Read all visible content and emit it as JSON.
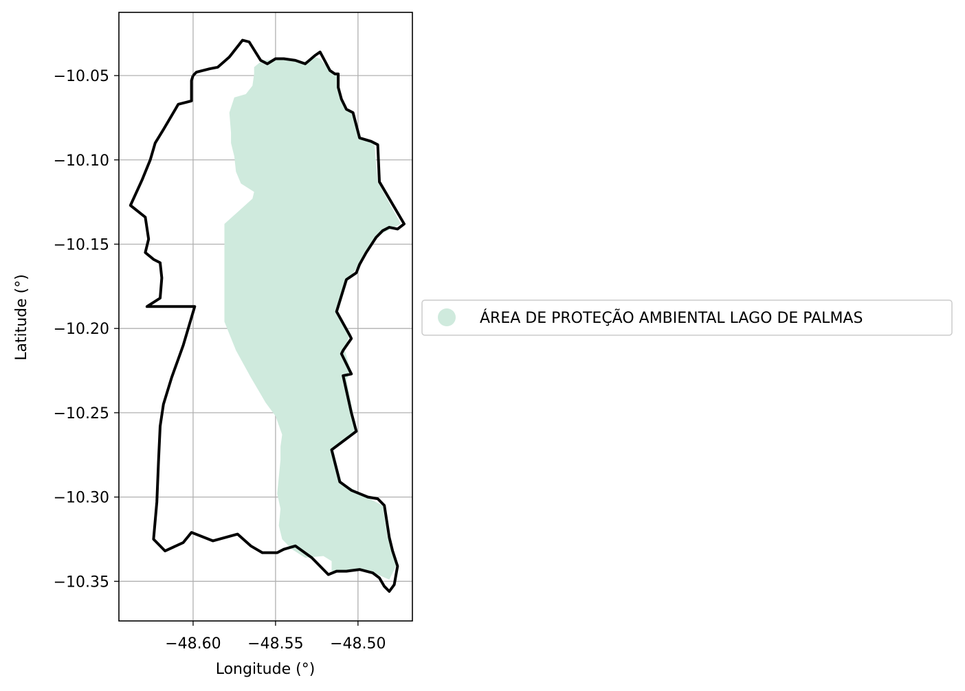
{
  "map": {
    "xlabel": "Longitude (°)",
    "ylabel": "Latitude (°)",
    "grid": true,
    "xlim": [
      -48.645,
      -48.467
    ],
    "ylim": [
      -10.3735,
      -10.0125
    ],
    "x_ticks": [
      {
        "value": -48.6,
        "label": "−48.60"
      },
      {
        "value": -48.55,
        "label": "−48.55"
      },
      {
        "value": -48.5,
        "label": "−48.50"
      }
    ],
    "y_ticks": [
      {
        "value": -10.05,
        "label": "−10.05"
      },
      {
        "value": -10.1,
        "label": "−10.10"
      },
      {
        "value": -10.15,
        "label": "−10.15"
      },
      {
        "value": -10.2,
        "label": "−10.20"
      },
      {
        "value": -10.25,
        "label": "−10.25"
      },
      {
        "value": -10.3,
        "label": "−10.30"
      },
      {
        "value": -10.35,
        "label": "−10.35"
      }
    ],
    "legend": {
      "placement": "center-left outside",
      "entries": [
        {
          "label": "ÁREA DE PROTEÇÃO AMBIENTAL LAGO DE PALMAS",
          "color": "#cfeadd"
        }
      ]
    },
    "colors": {
      "protected_area_fill": "#cfeadd",
      "boundary_line": "#000000",
      "grid": "#b0b0b0"
    },
    "boundary_polygon": [
      [
        -48.6,
        -10.05
      ],
      [
        -48.598,
        -10.048
      ],
      [
        -48.59,
        -10.046
      ],
      [
        -48.585,
        -10.045
      ],
      [
        -48.578,
        -10.039
      ],
      [
        -48.57,
        -10.029
      ],
      [
        -48.566,
        -10.03
      ],
      [
        -48.559,
        -10.041
      ],
      [
        -48.555,
        -10.043
      ],
      [
        -48.55,
        -10.04
      ],
      [
        -48.545,
        -10.04
      ],
      [
        -48.538,
        -10.041
      ],
      [
        -48.532,
        -10.043
      ],
      [
        -48.526,
        -10.038
      ],
      [
        -48.523,
        -10.036
      ],
      [
        -48.517,
        -10.047
      ],
      [
        -48.514,
        -10.049
      ],
      [
        -48.512,
        -10.049
      ],
      [
        -48.512,
        -10.057
      ],
      [
        -48.51,
        -10.064
      ],
      [
        -48.507,
        -10.07
      ],
      [
        -48.503,
        -10.072
      ],
      [
        -48.499,
        -10.087
      ],
      [
        -48.492,
        -10.089
      ],
      [
        -48.488,
        -10.091
      ],
      [
        -48.487,
        -10.113
      ],
      [
        -48.472,
        -10.138
      ],
      [
        -48.476,
        -10.141
      ],
      [
        -48.481,
        -10.14
      ],
      [
        -48.485,
        -10.142
      ],
      [
        -48.489,
        -10.146
      ],
      [
        -48.495,
        -10.155
      ],
      [
        -48.499,
        -10.162
      ],
      [
        -48.501,
        -10.167
      ],
      [
        -48.507,
        -10.171
      ],
      [
        -48.513,
        -10.19
      ],
      [
        -48.505,
        -10.204
      ],
      [
        -48.504,
        -10.206
      ],
      [
        -48.509,
        -10.213
      ],
      [
        -48.51,
        -10.215
      ],
      [
        -48.504,
        -10.227
      ],
      [
        -48.509,
        -10.228
      ],
      [
        -48.504,
        -10.25
      ],
      [
        -48.501,
        -10.261
      ],
      [
        -48.516,
        -10.272
      ],
      [
        -48.511,
        -10.291
      ],
      [
        -48.504,
        -10.296
      ],
      [
        -48.494,
        -10.3
      ],
      [
        -48.488,
        -10.301
      ],
      [
        -48.484,
        -10.305
      ],
      [
        -48.481,
        -10.324
      ],
      [
        -48.479,
        -10.332
      ],
      [
        -48.476,
        -10.341
      ],
      [
        -48.478,
        -10.352
      ],
      [
        -48.481,
        -10.356
      ],
      [
        -48.484,
        -10.353
      ],
      [
        -48.487,
        -10.348
      ],
      [
        -48.491,
        -10.345
      ],
      [
        -48.499,
        -10.343
      ],
      [
        -48.507,
        -10.344
      ],
      [
        -48.513,
        -10.344
      ],
      [
        -48.518,
        -10.346
      ],
      [
        -48.528,
        -10.336
      ],
      [
        -48.538,
        -10.329
      ],
      [
        -48.545,
        -10.331
      ],
      [
        -48.549,
        -10.333
      ],
      [
        -48.558,
        -10.333
      ],
      [
        -48.565,
        -10.329
      ],
      [
        -48.573,
        -10.322
      ],
      [
        -48.588,
        -10.326
      ],
      [
        -48.601,
        -10.321
      ],
      [
        -48.606,
        -10.327
      ],
      [
        -48.617,
        -10.332
      ],
      [
        -48.624,
        -10.325
      ],
      [
        -48.622,
        -10.303
      ],
      [
        -48.621,
        -10.279
      ],
      [
        -48.62,
        -10.258
      ],
      [
        -48.618,
        -10.245
      ],
      [
        -48.613,
        -10.229
      ],
      [
        -48.606,
        -10.21
      ],
      [
        -48.599,
        -10.187
      ],
      [
        -48.628,
        -10.187
      ],
      [
        -48.62,
        -10.182
      ],
      [
        -48.619,
        -10.17
      ],
      [
        -48.62,
        -10.161
      ],
      [
        -48.624,
        -10.159
      ],
      [
        -48.629,
        -10.155
      ],
      [
        -48.627,
        -10.147
      ],
      [
        -48.629,
        -10.134
      ],
      [
        -48.638,
        -10.127
      ],
      [
        -48.631,
        -10.112
      ],
      [
        -48.626,
        -10.1
      ],
      [
        -48.623,
        -10.09
      ],
      [
        -48.618,
        -10.082
      ],
      [
        -48.609,
        -10.067
      ],
      [
        -48.601,
        -10.065
      ],
      [
        -48.601,
        -10.053
      ],
      [
        -48.6,
        -10.05
      ]
    ],
    "protected_area_polygon": [
      [
        -48.547,
        -10.04
      ],
      [
        -48.54,
        -10.041
      ],
      [
        -48.533,
        -10.042
      ],
      [
        -48.526,
        -10.039
      ],
      [
        -48.523,
        -10.04
      ],
      [
        -48.517,
        -10.047
      ],
      [
        -48.512,
        -10.05
      ],
      [
        -48.511,
        -10.058
      ],
      [
        -48.509,
        -10.065
      ],
      [
        -48.506,
        -10.071
      ],
      [
        -48.502,
        -10.074
      ],
      [
        -48.498,
        -10.087
      ],
      [
        -48.49,
        -10.091
      ],
      [
        -48.488,
        -10.113
      ],
      [
        -48.474,
        -10.138
      ],
      [
        -48.48,
        -10.141
      ],
      [
        -48.488,
        -10.145
      ],
      [
        -48.494,
        -10.154
      ],
      [
        -48.499,
        -10.162
      ],
      [
        -48.506,
        -10.171
      ],
      [
        -48.512,
        -10.19
      ],
      [
        -48.505,
        -10.203
      ],
      [
        -48.508,
        -10.213
      ],
      [
        -48.504,
        -10.226
      ],
      [
        -48.507,
        -10.23
      ],
      [
        -48.503,
        -10.25
      ],
      [
        -48.502,
        -10.262
      ],
      [
        -48.515,
        -10.272
      ],
      [
        -48.51,
        -10.291
      ],
      [
        -48.497,
        -10.299
      ],
      [
        -48.485,
        -10.305
      ],
      [
        -48.482,
        -10.324
      ],
      [
        -48.479,
        -10.332
      ],
      [
        -48.477,
        -10.341
      ],
      [
        -48.481,
        -10.349
      ],
      [
        -48.488,
        -10.346
      ],
      [
        -48.498,
        -10.343
      ],
      [
        -48.507,
        -10.344
      ],
      [
        -48.516,
        -10.344
      ],
      [
        -48.516,
        -10.338
      ],
      [
        -48.521,
        -10.335
      ],
      [
        -48.532,
        -10.336
      ],
      [
        -48.54,
        -10.331
      ],
      [
        -48.546,
        -10.325
      ],
      [
        -48.548,
        -10.317
      ],
      [
        -48.547,
        -10.307
      ],
      [
        -48.549,
        -10.298
      ],
      [
        -48.548,
        -10.288
      ],
      [
        -48.547,
        -10.278
      ],
      [
        -48.547,
        -10.27
      ],
      [
        -48.546,
        -10.263
      ],
      [
        -48.55,
        -10.252
      ],
      [
        -48.556,
        -10.244
      ],
      [
        -48.565,
        -10.229
      ],
      [
        -48.574,
        -10.213
      ],
      [
        -48.581,
        -10.196
      ],
      [
        -48.581,
        -10.176
      ],
      [
        -48.581,
        -10.16
      ],
      [
        -48.581,
        -10.151
      ],
      [
        -48.581,
        -10.138
      ],
      [
        -48.573,
        -10.131
      ],
      [
        -48.564,
        -10.123
      ],
      [
        -48.563,
        -10.119
      ],
      [
        -48.571,
        -10.114
      ],
      [
        -48.574,
        -10.107
      ],
      [
        -48.575,
        -10.098
      ],
      [
        -48.577,
        -10.09
      ],
      [
        -48.577,
        -10.084
      ],
      [
        -48.578,
        -10.072
      ],
      [
        -48.575,
        -10.063
      ],
      [
        -48.568,
        -10.061
      ],
      [
        -48.564,
        -10.056
      ],
      [
        -48.563,
        -10.049
      ],
      [
        -48.563,
        -10.045
      ],
      [
        -48.558,
        -10.041
      ],
      [
        -48.547,
        -10.04
      ]
    ]
  }
}
